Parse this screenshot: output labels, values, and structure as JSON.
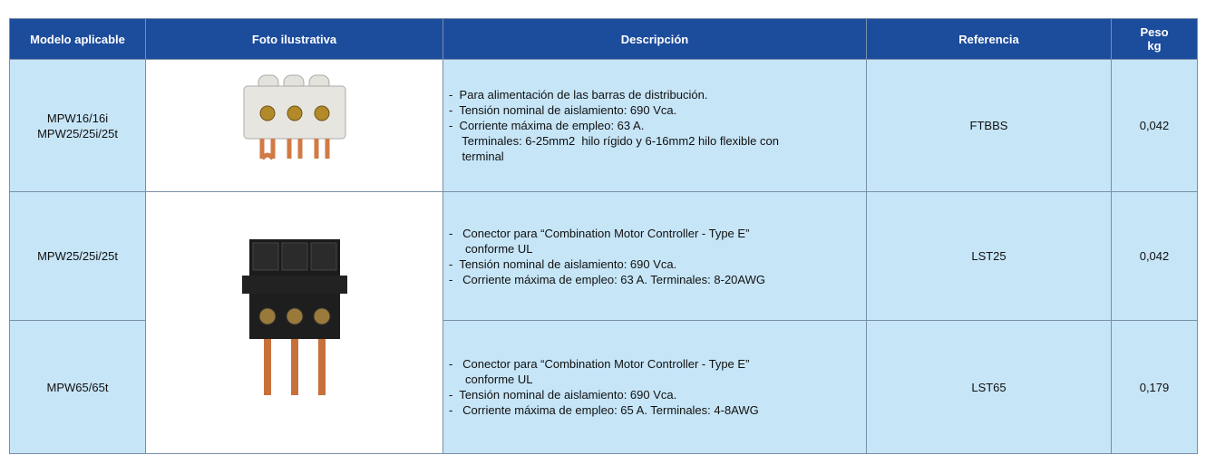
{
  "table": {
    "headers": [
      "Modelo aplicable",
      "Foto ilustrativa",
      "Descripción",
      "Referencia",
      [
        "Peso",
        "kg"
      ]
    ],
    "rows": [
      {
        "model": [
          "MPW16/16i",
          "MPW25/25i/25t"
        ],
        "description": [
          "-  Para alimentación de las barras de distribución.",
          "-  Tensión nominal de aislamiento: 690 Vca.",
          "-  Corriente máxima de empleo: 63 A.",
          "    Terminales: 6-25mm2  hilo rígido y 6-16mm2 hilo flexible con",
          "    terminal"
        ],
        "reference": "FTBBS",
        "weight": "0,042"
      },
      {
        "model": [
          "MPW25/25i/25t"
        ],
        "description": [
          "-   Conector para “Combination Motor Controller - Type E”",
          "     conforme UL",
          "-  Tensión nominal de aislamiento: 690 Vca.",
          "-   Corriente máxima de empleo: 63 A. Terminales: 8-20AWG"
        ],
        "reference": "LST25",
        "weight": "0,042"
      },
      {
        "model": [
          "MPW65/65t"
        ],
        "description": [
          "-   Conector para “Combination Motor Controller - Type E”",
          "     conforme UL",
          "-  Tensión nominal de aislamiento: 690 Vca.",
          "-   Corriente máxima de empleo: 65 A. Terminales: 4-8AWG"
        ],
        "reference": "LST65",
        "weight": "0,179"
      }
    ]
  }
}
